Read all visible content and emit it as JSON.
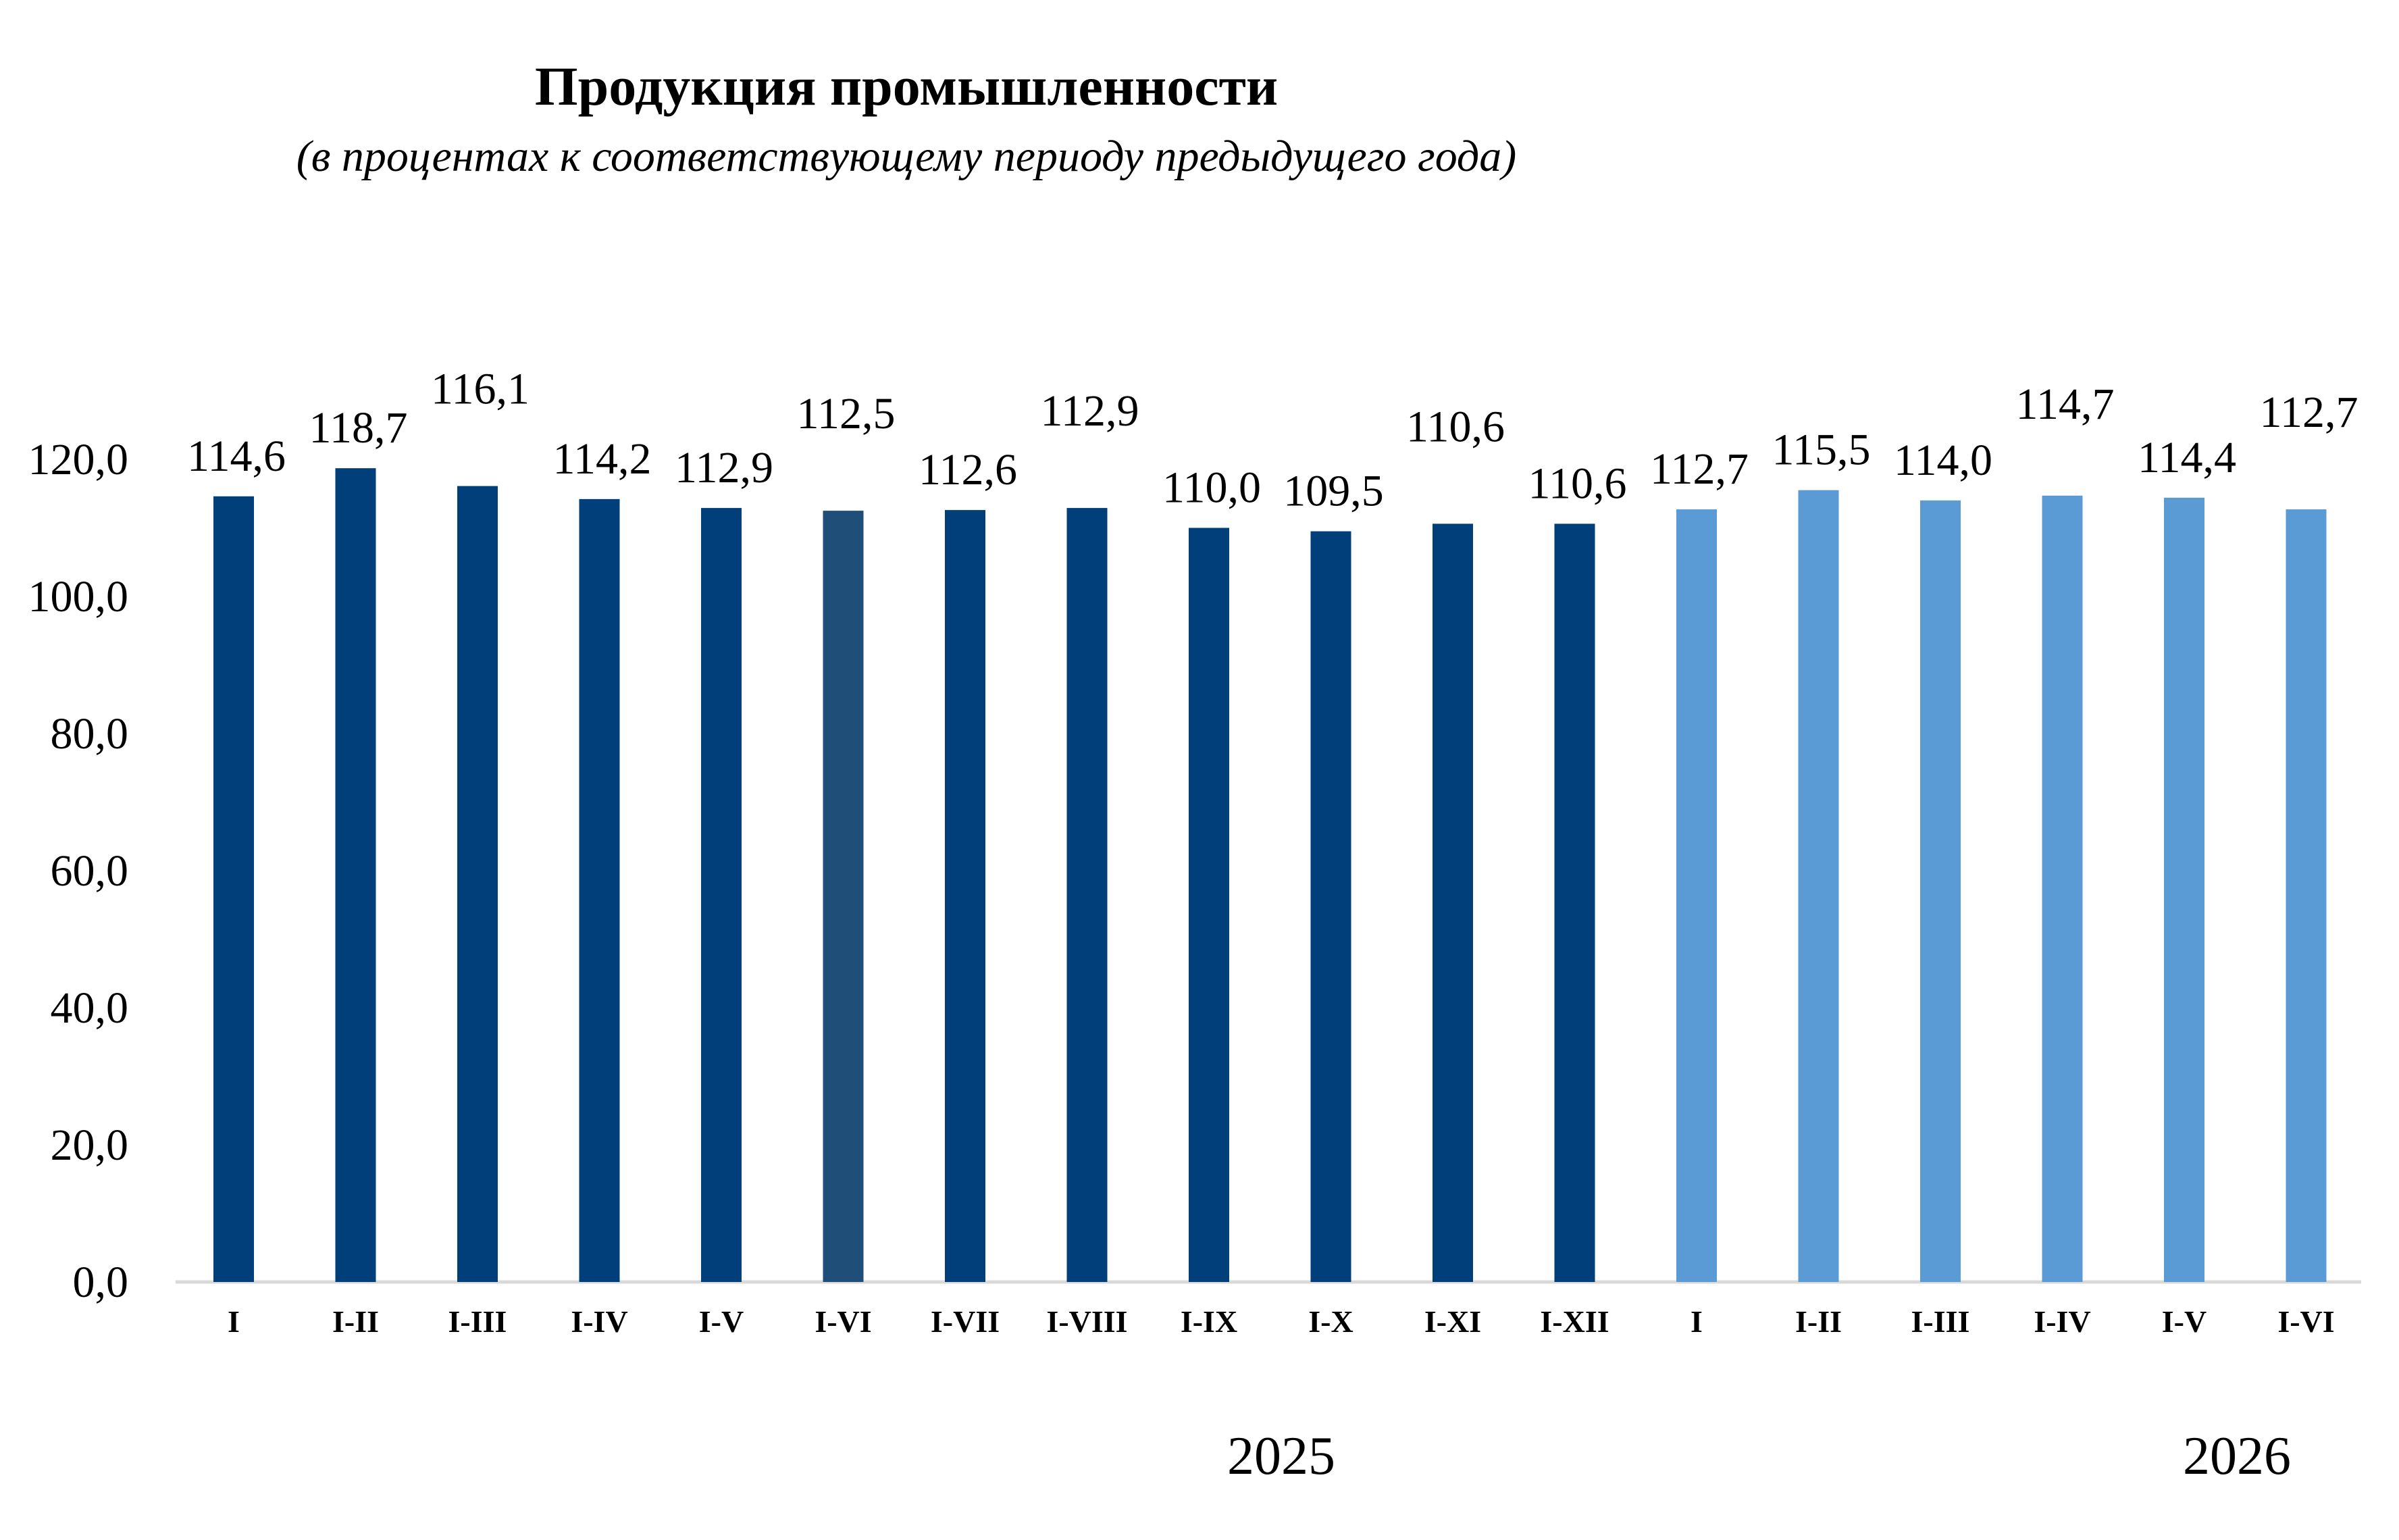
{
  "chart_data": {
    "type": "bar",
    "title": "Продукция промышленности",
    "subtitle": "(в процентах к соответствующему периоду предыдущего года)",
    "xlabel": "",
    "ylabel": "",
    "ylim": [
      0,
      120
    ],
    "y_ticks": [
      "0,0",
      "20,0",
      "40,0",
      "60,0",
      "80,0",
      "100,0",
      "120,0"
    ],
    "y_tick_values": [
      0,
      20,
      40,
      60,
      80,
      100,
      120
    ],
    "grid": false,
    "legend": "none",
    "categories": [
      "I",
      "I-II",
      "I-III",
      "I-IV",
      "I-V",
      "I-VI",
      "I-VII",
      "I-VIII",
      "I-IX",
      "I-X",
      "I-XI",
      "I-XII",
      "I",
      "I-II",
      "I-III",
      "I-IV",
      "I-V",
      "I-VI"
    ],
    "values": [
      114.6,
      118.7,
      116.1,
      114.2,
      112.9,
      112.5,
      112.6,
      112.9,
      110.0,
      109.5,
      110.6,
      110.6,
      112.7,
      115.5,
      114.0,
      114.7,
      114.4,
      112.7
    ],
    "value_labels": [
      "114,6",
      "118,7",
      "116,1",
      "114,2",
      "112,9",
      "112,5",
      "112,6",
      "112,9",
      "110,0",
      "109,5",
      "110,6",
      "110,6",
      "112,7",
      "115,5",
      "114,0",
      "114,7",
      "114,4",
      "112,7"
    ],
    "bar_colors": [
      "#003f7a",
      "#003f7a",
      "#003f7a",
      "#003f7a",
      "#003f7a",
      "#1f4e79",
      "#003f7a",
      "#003f7a",
      "#003f7a",
      "#003f7a",
      "#003f7a",
      "#003f7a",
      "#5b9bd5",
      "#5b9bd5",
      "#5b9bd5",
      "#5b9bd5",
      "#5b9bd5",
      "#5b9bd5"
    ],
    "groups": [
      {
        "label": "2025",
        "count": 12
      },
      {
        "label": "2026",
        "count": 6
      }
    ]
  },
  "colors": {
    "axis": "#d9d9d9"
  }
}
